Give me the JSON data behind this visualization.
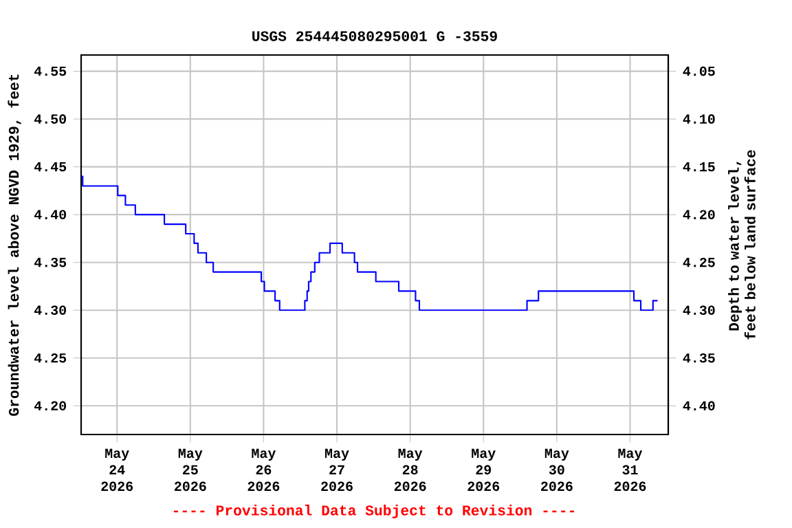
{
  "chart_data": {
    "type": "step",
    "title": "USGS 254445080295001 G  -3559",
    "xlabel": null,
    "ylabel": "Groundwater level above NGVD 1929, feet",
    "y2label": "Depth to water level, feet below land surface",
    "annotations": [
      "---- Provisional Data Subject to Revision ----"
    ],
    "x": [
      "2026-05-23T12:15",
      "2026-05-23T12:45",
      "2026-05-24T00:15",
      "2026-05-24T02:45",
      "2026-05-24T06:00",
      "2026-05-24T15:30",
      "2026-05-24T22:30",
      "2026-05-25T01:15",
      "2026-05-25T02:30",
      "2026-05-25T05:15",
      "2026-05-25T07:30",
      "2026-05-25T23:15",
      "2026-05-26T00:15",
      "2026-05-26T03:45",
      "2026-05-26T05:15",
      "2026-05-26T13:30",
      "2026-05-26T14:15",
      "2026-05-26T14:45",
      "2026-05-26T15:30",
      "2026-05-26T16:45",
      "2026-05-26T18:15",
      "2026-05-26T21:45",
      "2026-05-27T01:45",
      "2026-05-27T05:45",
      "2026-05-27T06:45",
      "2026-05-27T12:45",
      "2026-05-27T20:15",
      "2026-05-28T01:45",
      "2026-05-28T03:00",
      "2026-05-29T14:15",
      "2026-05-29T18:00",
      "2026-05-31T01:15",
      "2026-05-31T03:30",
      "2026-05-31T07:30",
      "2026-05-31T09:00"
    ],
    "series": [
      {
        "color": "#0000ff",
        "values": [
          4.44,
          4.43,
          4.42,
          4.41,
          4.4,
          4.39,
          4.38,
          4.37,
          4.36,
          4.35,
          4.34,
          4.33,
          4.32,
          4.31,
          4.3,
          4.31,
          4.32,
          4.33,
          4.34,
          4.35,
          4.36,
          4.37,
          4.36,
          4.35,
          4.34,
          4.33,
          4.32,
          4.31,
          4.3,
          4.31,
          4.32,
          4.31,
          4.3,
          4.31,
          4.31
        ]
      }
    ],
    "xlim": [
      "2026-05-23T12:15",
      "2026-05-31T12:30"
    ],
    "xticks": [
      {
        "value": "2026-05-24",
        "label": "May 24 2026"
      },
      {
        "value": "2026-05-25",
        "label": "May 25 2026"
      },
      {
        "value": "2026-05-26",
        "label": "May 26 2026"
      },
      {
        "value": "2026-05-27",
        "label": "May 27 2026"
      },
      {
        "value": "2026-05-28",
        "label": "May 28 2026"
      },
      {
        "value": "2026-05-29",
        "label": "May 29 2026"
      },
      {
        "value": "2026-05-30",
        "label": "May 30 2026"
      },
      {
        "value": "2026-05-31",
        "label": "May 31 2026"
      }
    ],
    "ylim": [
      4.17,
      4.567
    ],
    "yticks": [
      {
        "value": 4.2,
        "label": "4.20"
      },
      {
        "value": 4.25,
        "label": "4.25"
      },
      {
        "value": 4.3,
        "label": "4.30"
      },
      {
        "value": 4.35,
        "label": "4.35"
      },
      {
        "value": 4.4,
        "label": "4.40"
      },
      {
        "value": 4.45,
        "label": "4.45"
      },
      {
        "value": 4.5,
        "label": "4.50"
      },
      {
        "value": 4.55,
        "label": "4.55"
      }
    ],
    "y2lim": [
      4.43,
      4.033
    ],
    "y2ticks": [
      {
        "value": 4.05,
        "label": "4.05"
      },
      {
        "value": 4.1,
        "label": "4.10"
      },
      {
        "value": 4.15,
        "label": "4.15"
      },
      {
        "value": 4.2,
        "label": "4.20"
      },
      {
        "value": 4.25,
        "label": "4.25"
      },
      {
        "value": 4.3,
        "label": "4.30"
      },
      {
        "value": 4.35,
        "label": "4.35"
      },
      {
        "value": 4.4,
        "label": "4.40"
      }
    ],
    "grid": true,
    "marker": "none",
    "line_style": "solid"
  }
}
